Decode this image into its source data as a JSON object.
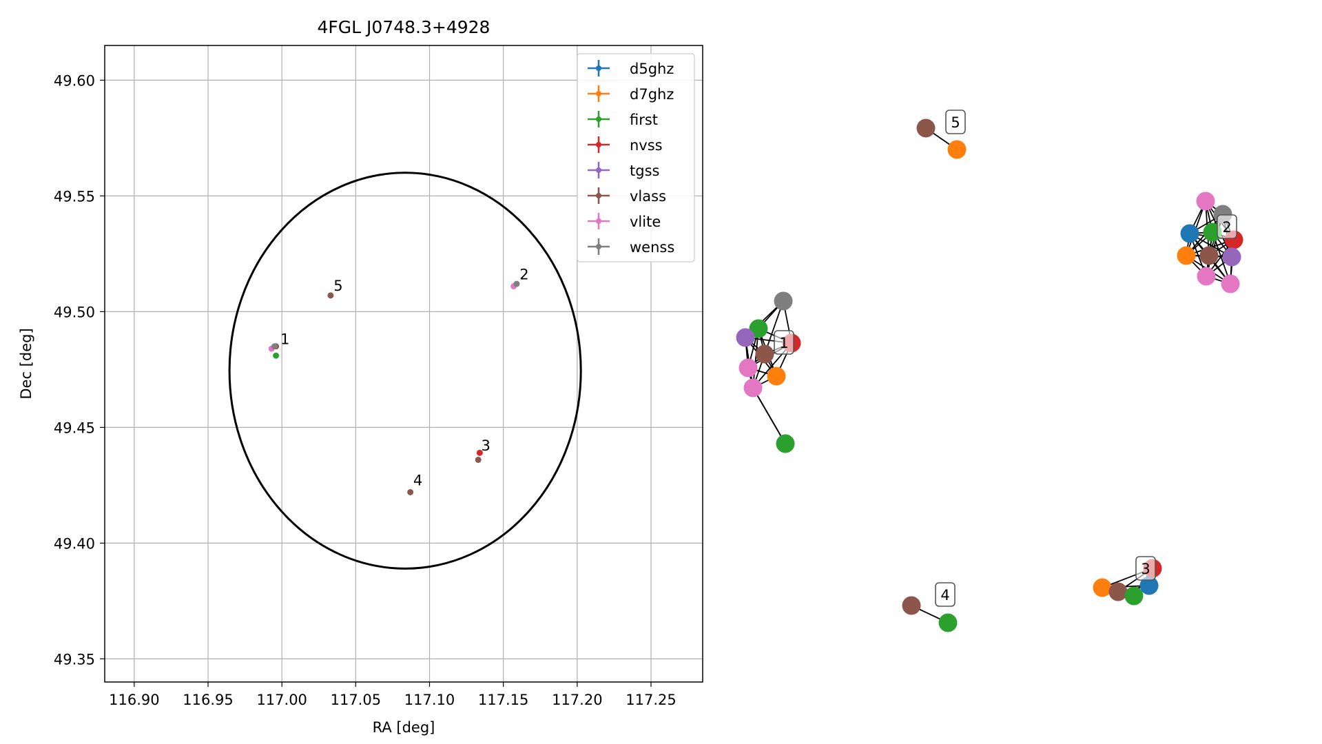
{
  "chart_data": [
    {
      "type": "scatter",
      "title": "4FGL J0748.3+4928",
      "xlabel": "RA [deg]",
      "ylabel": "Dec [deg]",
      "xlim": [
        116.88,
        117.285
      ],
      "ylim": [
        49.34,
        49.615
      ],
      "x_ticks": [
        116.9,
        116.95,
        117.0,
        117.05,
        117.1,
        117.15,
        117.2,
        117.25
      ],
      "x_tick_labels": [
        "116.90",
        "116.95",
        "117.00",
        "117.05",
        "117.10",
        "117.15",
        "117.20",
        "117.25"
      ],
      "y_ticks": [
        49.35,
        49.4,
        49.45,
        49.5,
        49.55,
        49.6
      ],
      "y_tick_labels": [
        "49.35",
        "49.40",
        "49.45",
        "49.50",
        "49.55",
        "49.60"
      ],
      "grid": true,
      "legend_position": "top-right",
      "ellipse": {
        "center_ra": 117.0835,
        "center_dec": 49.4745,
        "semi_ra": 0.119,
        "semi_dec": 0.0855,
        "color": "#000000"
      },
      "series": [
        {
          "name": "d5ghz",
          "color": "#1f77b4",
          "points": []
        },
        {
          "name": "d7ghz",
          "color": "#ff7f0e",
          "points": []
        },
        {
          "name": "first",
          "color": "#2ca02c",
          "points": [
            {
              "x": 116.996,
              "y": 49.481
            }
          ]
        },
        {
          "name": "nvss",
          "color": "#d62728",
          "points": [
            {
              "x": 117.134,
              "y": 49.439
            }
          ]
        },
        {
          "name": "tgss",
          "color": "#9467bd",
          "points": []
        },
        {
          "name": "vlass",
          "color": "#8c564b",
          "points": [
            {
              "x": 116.996,
              "y": 49.485
            },
            {
              "x": 117.033,
              "y": 49.507
            },
            {
              "x": 117.087,
              "y": 49.422
            },
            {
              "x": 117.133,
              "y": 49.436
            }
          ]
        },
        {
          "name": "vlite",
          "color": "#e377c2",
          "points": [
            {
              "x": 116.993,
              "y": 49.484
            },
            {
              "x": 117.157,
              "y": 49.511
            }
          ]
        },
        {
          "name": "wenss",
          "color": "#7f7f7f",
          "points": [
            {
              "x": 116.995,
              "y": 49.485
            },
            {
              "x": 117.159,
              "y": 49.512
            }
          ]
        }
      ],
      "annotations": [
        {
          "text": "1",
          "x": 116.999,
          "y": 49.486
        },
        {
          "text": "2",
          "x": 117.161,
          "y": 49.514
        },
        {
          "text": "3",
          "x": 117.135,
          "y": 49.44
        },
        {
          "text": "4",
          "x": 117.089,
          "y": 49.425
        },
        {
          "text": "5",
          "x": 117.035,
          "y": 49.509
        }
      ]
    },
    {
      "type": "network",
      "labels": [
        "1",
        "2",
        "3",
        "4",
        "5"
      ],
      "nodes": [
        {
          "cat": "wenss"
        },
        {
          "cat": "first"
        },
        {
          "cat": "tgss"
        },
        {
          "cat": "nvss"
        },
        {
          "cat": "vlass"
        },
        {
          "cat": "vlite"
        },
        {
          "cat": "vlite"
        },
        {
          "cat": "d7ghz"
        },
        {
          "cat": "first"
        },
        {
          "cat": "vlite"
        },
        {
          "cat": "wenss"
        },
        {
          "cat": "d5ghz"
        },
        {
          "cat": "first"
        },
        {
          "cat": "nvss"
        },
        {
          "cat": "d7ghz"
        },
        {
          "cat": "vlass"
        },
        {
          "cat": "tgss"
        },
        {
          "cat": "vlite"
        },
        {
          "cat": "vlite"
        },
        {
          "cat": "d7ghz"
        },
        {
          "cat": "vlass"
        },
        {
          "cat": "first"
        },
        {
          "cat": "d5ghz"
        },
        {
          "cat": "nvss"
        },
        {
          "cat": "vlass"
        },
        {
          "cat": "d7ghz"
        },
        {
          "cat": "vlass"
        },
        {
          "cat": "first"
        }
      ]
    }
  ]
}
